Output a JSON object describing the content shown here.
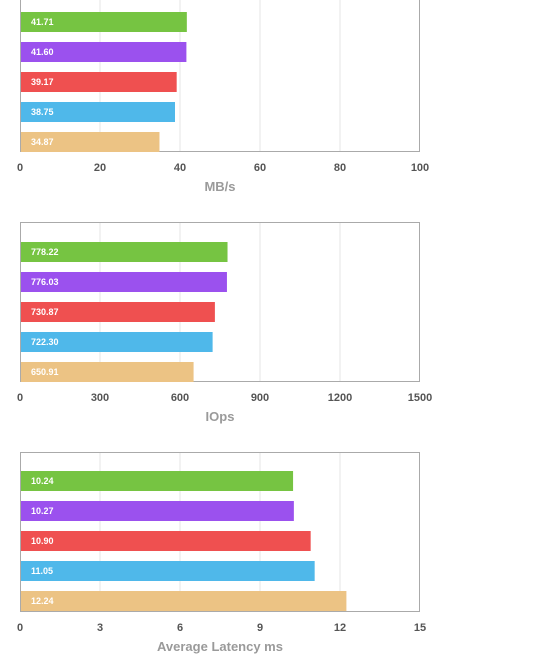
{
  "colors": {
    "series": [
      "#76c442",
      "#9b51ee",
      "#ef5050",
      "#4fb8ea",
      "#ecc384"
    ],
    "grid": "#e6e6e6",
    "frame": "#aaaaaa"
  },
  "chart_data": [
    {
      "type": "bar",
      "orientation": "horizontal",
      "values": [
        41.71,
        41.6,
        39.17,
        38.75,
        34.87
      ],
      "value_labels": [
        "41.71",
        "41.60",
        "39.17",
        "38.75",
        "34.87"
      ],
      "xlabel": "MB/s",
      "xlim": [
        0,
        100
      ],
      "ticks": [
        "0",
        "20",
        "40",
        "60",
        "80",
        "100"
      ],
      "grid": true
    },
    {
      "type": "bar",
      "orientation": "horizontal",
      "values": [
        778.22,
        776.03,
        730.87,
        722.3,
        650.91
      ],
      "value_labels": [
        "778.22",
        "776.03",
        "730.87",
        "722.30",
        "650.91"
      ],
      "xlabel": "IOps",
      "xlim": [
        0,
        1500
      ],
      "ticks": [
        "0",
        "300",
        "600",
        "900",
        "1200",
        "1500"
      ],
      "grid": true
    },
    {
      "type": "bar",
      "orientation": "horizontal",
      "values": [
        10.24,
        10.27,
        10.9,
        11.05,
        12.24
      ],
      "value_labels": [
        "10.24",
        "10.27",
        "10.90",
        "11.05",
        "12.24"
      ],
      "xlabel": "Average Latency ms",
      "xlim": [
        0,
        15
      ],
      "ticks": [
        "0",
        "3",
        "6",
        "9",
        "12",
        "15"
      ],
      "grid": true
    }
  ]
}
